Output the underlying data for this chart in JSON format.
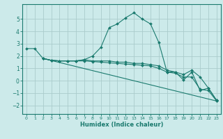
{
  "xlabel": "Humidex (Indice chaleur)",
  "background_color": "#cceaea",
  "grid_color": "#aacccc",
  "line_color": "#1a7a6e",
  "xlim": [
    -0.5,
    23.5
  ],
  "ylim": [
    -2.7,
    6.2
  ],
  "yticks": [
    -2,
    -1,
    0,
    1,
    2,
    3,
    4,
    5
  ],
  "xticks": [
    0,
    1,
    2,
    3,
    4,
    5,
    6,
    7,
    8,
    9,
    10,
    11,
    12,
    13,
    14,
    15,
    16,
    17,
    18,
    19,
    20,
    21,
    22,
    23
  ],
  "series": [
    {
      "x": [
        0,
        1,
        2,
        3,
        4,
        5,
        6,
        7,
        8,
        9,
        10,
        11,
        12,
        13,
        14,
        15,
        16,
        17,
        18,
        19,
        20,
        21,
        22,
        23
      ],
      "y": [
        2.6,
        2.6,
        1.8,
        1.65,
        1.6,
        1.6,
        1.6,
        1.7,
        2.0,
        2.7,
        4.3,
        4.6,
        5.1,
        5.5,
        5.0,
        4.6,
        3.1,
        0.7,
        0.7,
        0.05,
        0.7,
        -0.8,
        -0.6,
        -1.6
      ]
    },
    {
      "x": [
        2,
        3,
        4,
        5,
        6,
        7,
        8,
        9,
        10,
        11,
        12,
        13,
        14,
        15,
        16,
        17,
        18,
        19,
        20,
        21,
        22,
        23
      ],
      "y": [
        1.8,
        1.65,
        1.6,
        1.6,
        1.6,
        1.7,
        1.6,
        1.6,
        1.6,
        1.5,
        1.5,
        1.4,
        1.4,
        1.3,
        1.2,
        0.85,
        0.7,
        0.5,
        0.85,
        0.3,
        -0.6,
        -1.6
      ]
    },
    {
      "x": [
        2,
        3,
        4,
        5,
        6,
        7,
        8,
        9,
        10,
        11,
        12,
        13,
        14,
        15,
        16,
        17,
        18,
        19,
        20,
        21,
        22,
        23
      ],
      "y": [
        1.8,
        1.65,
        1.6,
        1.6,
        1.6,
        1.6,
        1.55,
        1.5,
        1.45,
        1.4,
        1.35,
        1.3,
        1.25,
        1.2,
        1.0,
        0.7,
        0.6,
        0.3,
        0.3,
        -0.7,
        -0.8,
        -1.65
      ]
    },
    {
      "x": [
        2,
        23
      ],
      "y": [
        1.8,
        -1.65
      ]
    }
  ]
}
